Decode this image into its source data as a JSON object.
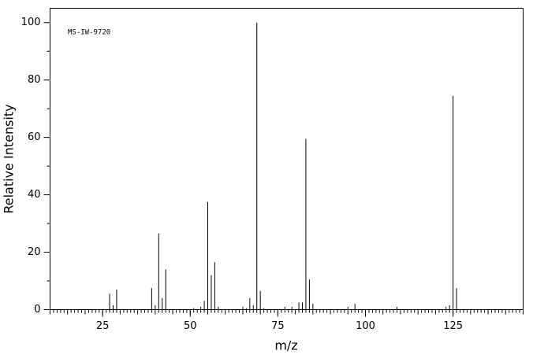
{
  "chart_data": {
    "type": "bar",
    "annotation": "MS-IW-9720",
    "x_label": "m/z",
    "y_label": "Relative Intensity",
    "x": [
      27,
      28,
      29,
      39,
      40,
      41,
      42,
      43,
      51,
      53,
      54,
      55,
      56,
      57,
      58,
      65,
      66,
      67,
      68,
      69,
      70,
      71,
      77,
      79,
      81,
      82,
      83,
      84,
      85,
      95,
      97,
      109,
      123,
      124,
      125,
      126
    ],
    "values": [
      5.5,
      1.5,
      7,
      7.5,
      1.5,
      26.5,
      4,
      14,
      0.5,
      1,
      3,
      37.5,
      12,
      16.5,
      1,
      1,
      0.5,
      4,
      1.5,
      100,
      6.5,
      0.5,
      1,
      1,
      2.5,
      2.5,
      59.5,
      10.5,
      2,
      1,
      2,
      1,
      1,
      1.5,
      74.5,
      7.5
    ],
    "color": "#000000",
    "xlim": [
      10,
      145
    ],
    "ylim": [
      0,
      105
    ],
    "xticks": [
      25,
      50,
      75,
      100,
      125
    ],
    "yticks": [
      0,
      20,
      40,
      60,
      80,
      100
    ]
  }
}
